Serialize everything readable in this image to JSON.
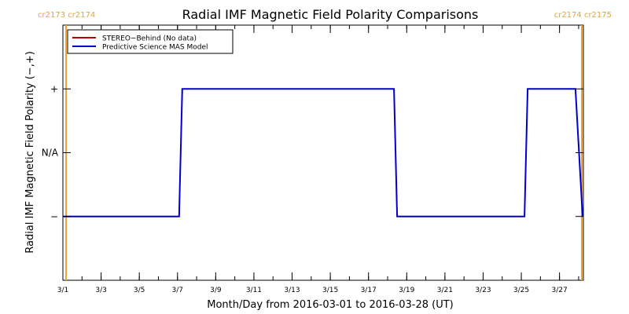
{
  "chart_data": {
    "type": "line",
    "title": "Radial IMF Magnetic Field Polarity Comparisons",
    "xlabel": "Month/Day from 2016-03-01 to 2016-03-28 (UT)",
    "ylabel": "Radial IMF Magnetic Field Polarity (−,+)",
    "x_range": [
      "2016-03-01",
      "2016-03-28T06:00"
    ],
    "y_categories": [
      {
        "label": "−",
        "value": -1
      },
      {
        "label": "N/A",
        "value": 0
      },
      {
        "label": "+",
        "value": 1
      }
    ],
    "ylim": [
      -2,
      2
    ],
    "x_ticks": [
      {
        "label": "3/1",
        "date": "2016-03-01"
      },
      {
        "label": "3/3",
        "date": "2016-03-03"
      },
      {
        "label": "3/5",
        "date": "2016-03-05"
      },
      {
        "label": "3/7",
        "date": "2016-03-07"
      },
      {
        "label": "3/9",
        "date": "2016-03-09"
      },
      {
        "label": "3/11",
        "date": "2016-03-11"
      },
      {
        "label": "3/13",
        "date": "2016-03-13"
      },
      {
        "label": "3/15",
        "date": "2016-03-15"
      },
      {
        "label": "3/17",
        "date": "2016-03-17"
      },
      {
        "label": "3/19",
        "date": "2016-03-19"
      },
      {
        "label": "3/21",
        "date": "2016-03-21"
      },
      {
        "label": "3/23",
        "date": "2016-03-23"
      },
      {
        "label": "3/25",
        "date": "2016-03-25"
      },
      {
        "label": "3/27",
        "date": "2016-03-27"
      }
    ],
    "minor_ticks_per_day": 1,
    "legend_position": "top-left",
    "series": [
      {
        "name": "STEREO−Behind (No data)",
        "color": "#bb0000",
        "points": []
      },
      {
        "name": "Predictive Science MAS Model",
        "color": "#0000cc",
        "points": [
          {
            "x": "2016-03-01T00:00",
            "y": -1
          },
          {
            "x": "2016-03-07T02:00",
            "y": -1
          },
          {
            "x": "2016-03-07T06:00",
            "y": 1
          },
          {
            "x": "2016-03-18T08:00",
            "y": 1
          },
          {
            "x": "2016-03-18T12:00",
            "y": -1
          },
          {
            "x": "2016-03-25T04:00",
            "y": -1
          },
          {
            "x": "2016-03-25T08:00",
            "y": 1
          },
          {
            "x": "2016-03-27T20:00",
            "y": 1
          },
          {
            "x": "2016-03-28T05:00",
            "y": -1
          }
        ]
      }
    ],
    "carrington_markers": [
      {
        "label": "cr2173 cr2174",
        "date": "2016-03-01T04:00",
        "side": "left"
      },
      {
        "label": "cr2174 cr2175",
        "date": "2016-03-28T04:00",
        "side": "right"
      }
    ],
    "marker_color": "#e8a33a"
  }
}
